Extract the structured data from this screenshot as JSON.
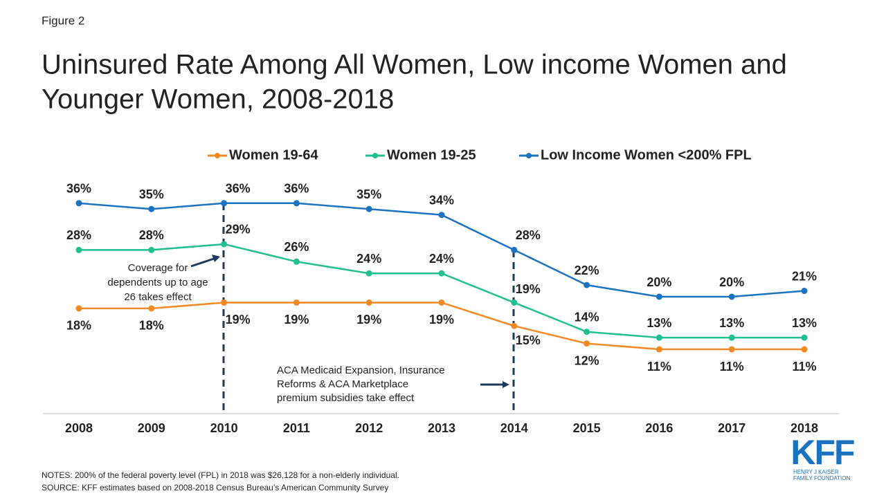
{
  "figure_label": "Figure 2",
  "chart_data": {
    "type": "line",
    "title": [
      "Uninsured Rate Among All Women, Low income Women and",
      "Younger Women, 2008-2018"
    ],
    "categories": [
      "2008",
      "2009",
      "2010",
      "2011",
      "2012",
      "2013",
      "2014",
      "2015",
      "2016",
      "2017",
      "2018"
    ],
    "ylim": [
      0,
      40
    ],
    "series": [
      {
        "name": "Women 19-64",
        "color": "#f08a24",
        "values": [
          18,
          18,
          19,
          19,
          19,
          19,
          15,
          12,
          11,
          11,
          11
        ],
        "value_labels": [
          "18%",
          "18%",
          "19%",
          "19%",
          "19%",
          "19%",
          "15%",
          "12%",
          "11%",
          "11%",
          "11%"
        ]
      },
      {
        "name": "Women 19-25",
        "color": "#1fbf8f",
        "values": [
          28,
          28,
          29,
          26,
          24,
          24,
          19,
          14,
          13,
          13,
          13
        ],
        "value_labels": [
          "28%",
          "28%",
          "29%",
          "26%",
          "24%",
          "24%",
          "19%",
          "14%",
          "13%",
          "13%",
          "13%"
        ]
      },
      {
        "name": "Low Income Women <200% FPL",
        "color": "#1a72c0",
        "values": [
          36,
          35,
          36,
          36,
          35,
          34,
          28,
          22,
          20,
          20,
          21
        ],
        "value_labels": [
          "36%",
          "35%",
          "36%",
          "36%",
          "35%",
          "34%",
          "28%",
          "22%",
          "20%",
          "20%",
          "21%"
        ]
      }
    ],
    "annotations": [
      [
        "Coverage  for",
        "dependents  up to age",
        "26 takes effect"
      ],
      [
        "ACA Medicaid  Expansion,  Insurance",
        "Reforms  & ACA Marketplace",
        "premium  subsidies  take effect"
      ]
    ]
  },
  "notes": [
    "NOTES: 200% of the federal  poverty  level (FPL) in 2018 was $26,128 for a non-elderly  individual.",
    "SOURCE: KFF estimates based on 2008-2018 Census Bureau’s American Community Survey"
  ],
  "logo": {
    "name": "KFF",
    "lines": [
      "HENRY J KAISER",
      "FAMILY FOUNDATION"
    ]
  }
}
